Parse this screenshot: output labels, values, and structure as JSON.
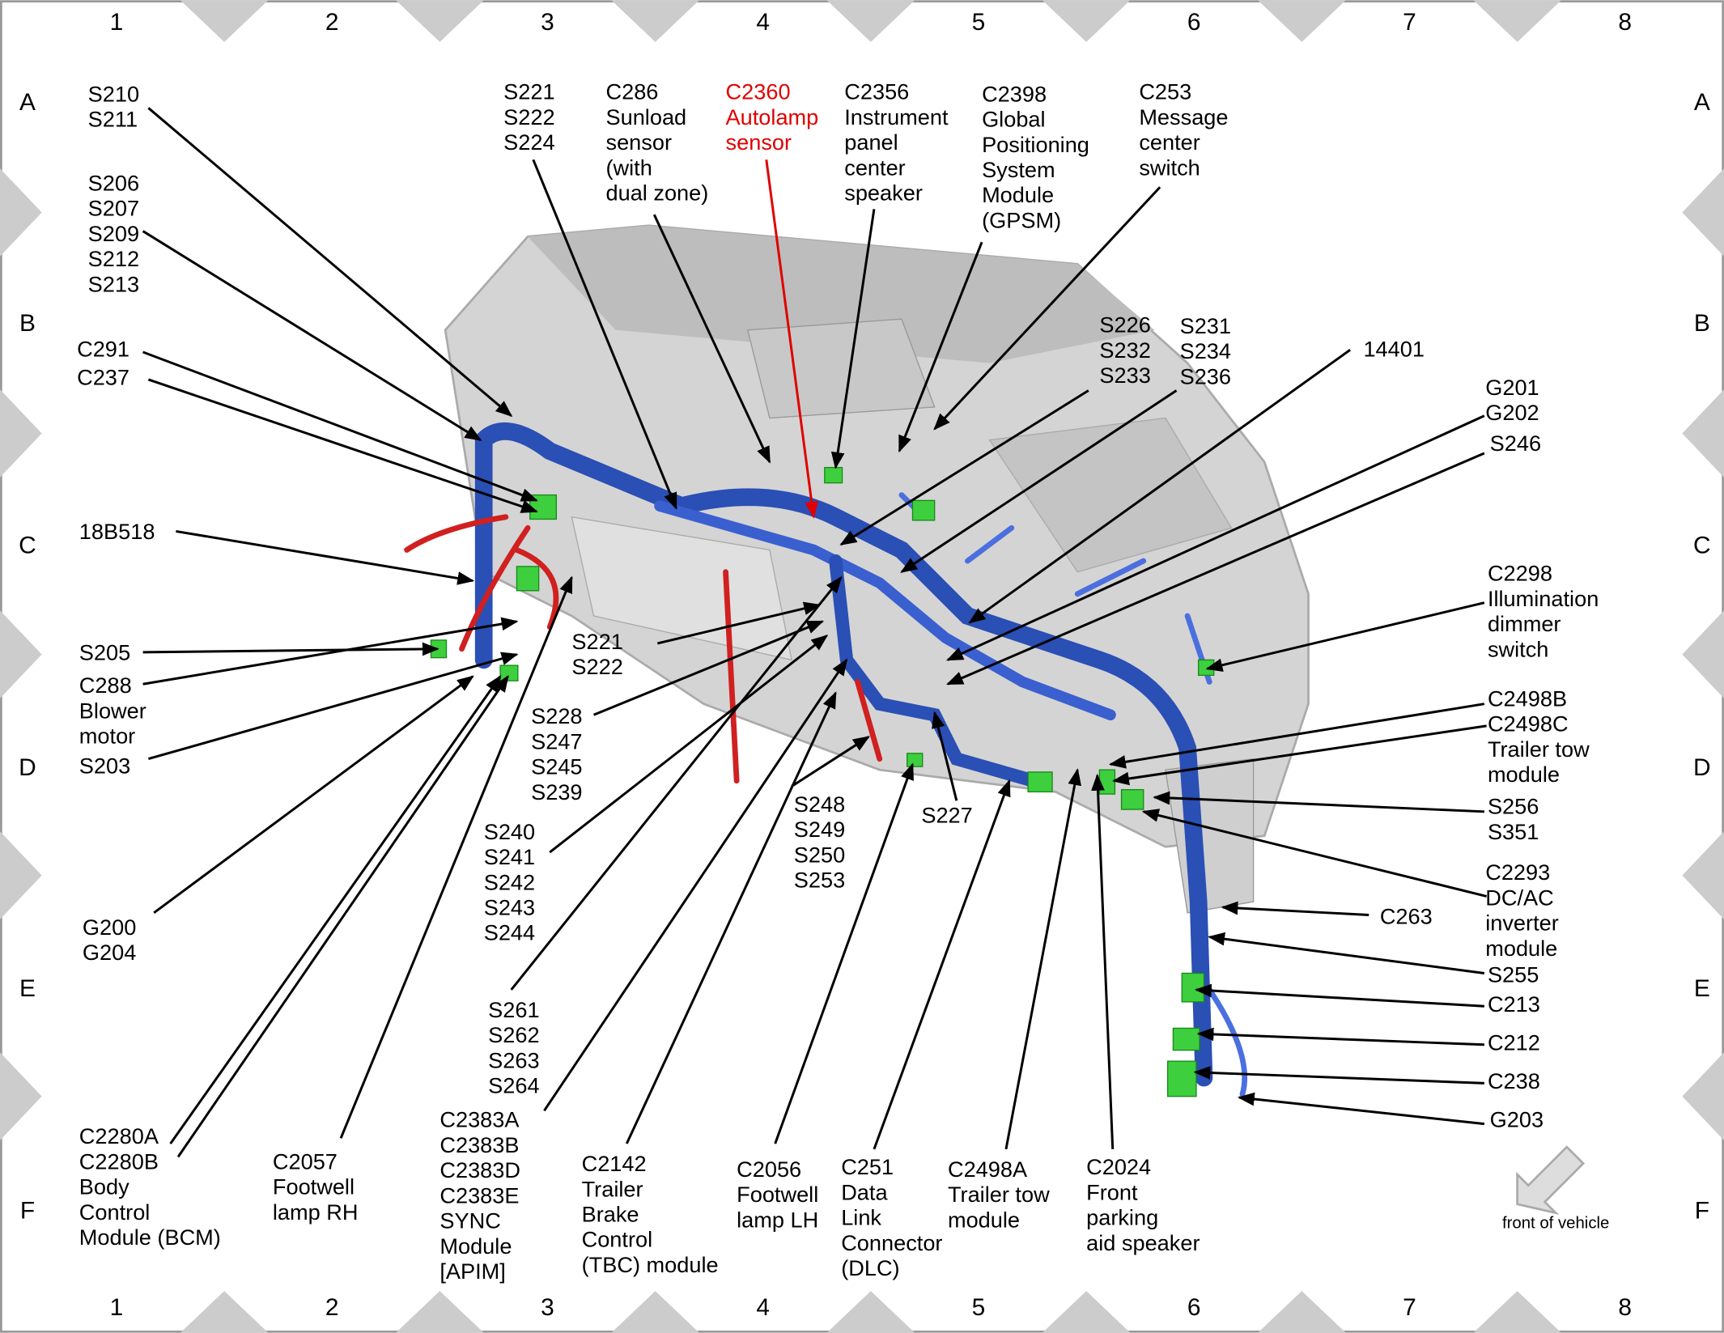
{
  "grid": {
    "columns": [
      "1",
      "2",
      "3",
      "4",
      "5",
      "6",
      "7",
      "8"
    ],
    "rows": [
      "A",
      "B",
      "C",
      "D",
      "E",
      "F"
    ]
  },
  "callouts": [
    {
      "lines": [
        "S210",
        "S211"
      ]
    },
    {
      "lines": [
        "S206",
        "S207",
        "S209",
        "S212",
        "S213"
      ]
    },
    {
      "lines": [
        "C291"
      ]
    },
    {
      "lines": [
        "C237"
      ]
    },
    {
      "lines": [
        "18B518"
      ]
    },
    {
      "lines": [
        "S205"
      ]
    },
    {
      "lines": [
        "C288",
        "Blower",
        "motor"
      ]
    },
    {
      "lines": [
        "S203"
      ]
    },
    {
      "lines": [
        "G200",
        "G204"
      ]
    },
    {
      "lines": [
        "C2280A",
        "C2280B",
        "Body",
        "Control",
        "Module (BCM)"
      ]
    },
    {
      "lines": [
        "C2057",
        "Footwell",
        "lamp RH"
      ]
    },
    {
      "lines": [
        "S221",
        "S222",
        "S224"
      ]
    },
    {
      "lines": [
        "C286",
        "Sunload",
        "sensor",
        "(with",
        "dual zone)"
      ]
    },
    {
      "lines": [
        "C2360",
        "Autolamp",
        "sensor"
      ],
      "color": "#e00000"
    },
    {
      "lines": [
        "C2356",
        "Instrument",
        "panel",
        "center",
        "speaker"
      ]
    },
    {
      "lines": [
        "C2398",
        "Global",
        "Positioning",
        "System",
        "Module",
        "(GPSM)"
      ]
    },
    {
      "lines": [
        "C253",
        "Message",
        "center",
        "switch"
      ]
    },
    {
      "lines": [
        "S226",
        "S232",
        "S233"
      ]
    },
    {
      "lines": [
        "S231",
        "S234",
        "S236"
      ]
    },
    {
      "lines": [
        "14401"
      ]
    },
    {
      "lines": [
        "G201",
        "G202"
      ]
    },
    {
      "lines": [
        "S246"
      ]
    },
    {
      "lines": [
        "C2298",
        "Illumination",
        "dimmer",
        "switch"
      ]
    },
    {
      "lines": [
        "C2498B",
        "C2498C",
        "Trailer tow",
        "module"
      ]
    },
    {
      "lines": [
        "S256",
        "S351"
      ]
    },
    {
      "lines": [
        "C2293",
        "DC/AC",
        "inverter",
        "module"
      ]
    },
    {
      "lines": [
        "C263"
      ]
    },
    {
      "lines": [
        "S255"
      ]
    },
    {
      "lines": [
        "C213"
      ]
    },
    {
      "lines": [
        "C212"
      ]
    },
    {
      "lines": [
        "C238"
      ]
    },
    {
      "lines": [
        "G203"
      ]
    },
    {
      "lines": [
        "S221",
        "S222"
      ]
    },
    {
      "lines": [
        "S228",
        "S247",
        "S245",
        "S239"
      ]
    },
    {
      "lines": [
        "S240",
        "S241",
        "S242",
        "S243",
        "S244"
      ]
    },
    {
      "lines": [
        "S261",
        "S262",
        "S263",
        "S264"
      ]
    },
    {
      "lines": [
        "C2383A",
        "C2383B",
        "C2383D",
        "C2383E",
        "SYNC",
        "Module",
        "[APIM]"
      ]
    },
    {
      "lines": [
        "C2142",
        "Trailer",
        "Brake",
        "Control",
        "(TBC) module"
      ]
    },
    {
      "lines": [
        "S248",
        "S249",
        "S250",
        "S253"
      ]
    },
    {
      "lines": [
        "S227"
      ]
    },
    {
      "lines": [
        "C2056",
        "Footwell",
        "lamp LH"
      ]
    },
    {
      "lines": [
        "C251",
        "Data",
        "Link",
        "Connector",
        "(DLC)"
      ]
    },
    {
      "lines": [
        "C2498A",
        "Trailer tow",
        "module"
      ]
    },
    {
      "lines": [
        "C2024",
        "Front",
        "parking",
        "aid speaker"
      ]
    }
  ],
  "orientation": {
    "caption": "front of vehicle"
  }
}
